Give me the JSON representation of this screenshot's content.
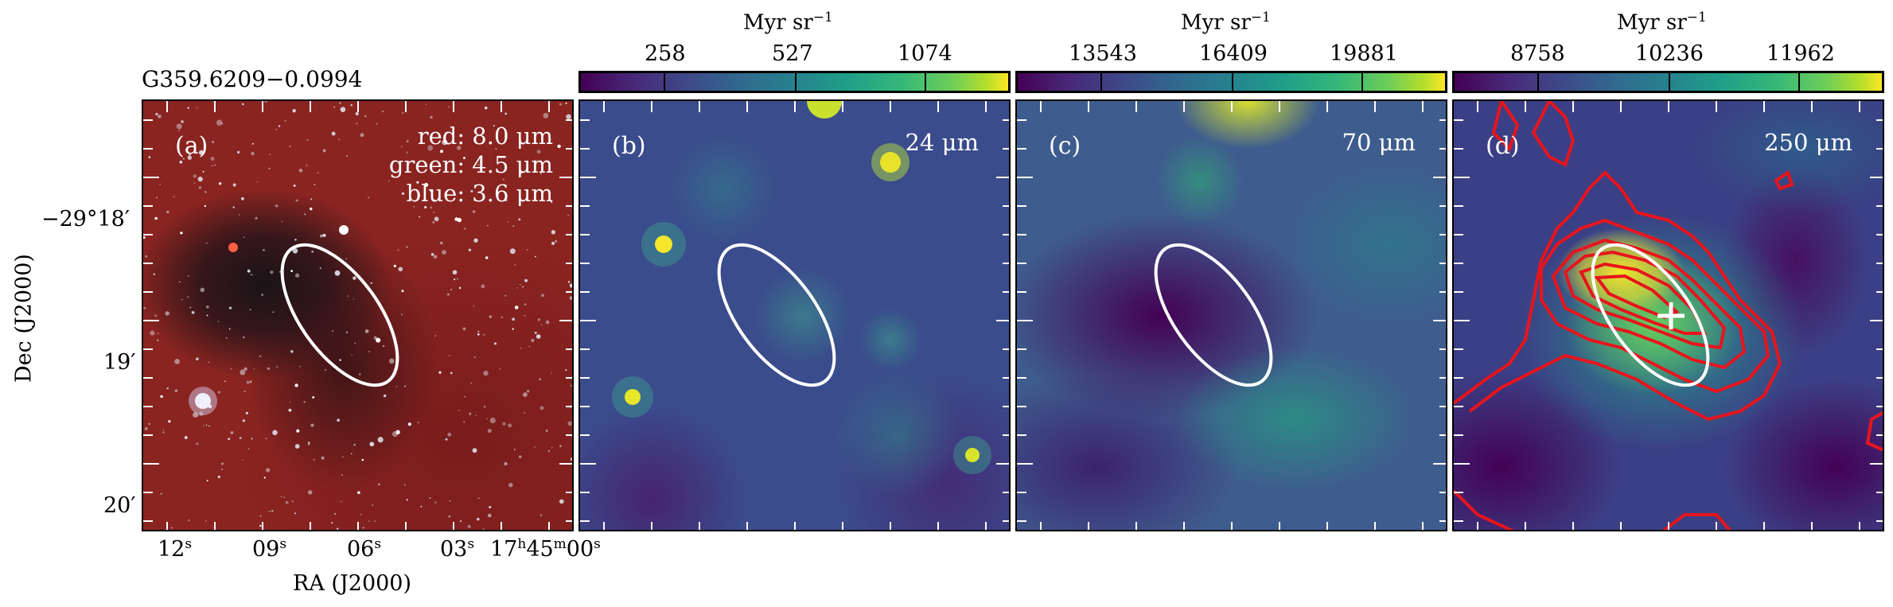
{
  "figure": {
    "source_name": "G359.6209−0.0994",
    "colorbar_unit": "Myr sr",
    "colorbar_unit_exp": "−1",
    "colorbars": [
      {
        "ticks": [
          "258",
          "527",
          "1074"
        ]
      },
      {
        "ticks": [
          "13543",
          "16409",
          "19881"
        ]
      },
      {
        "ticks": [
          "8758",
          "10236",
          "11962"
        ]
      }
    ],
    "panels": [
      {
        "label": "(a)",
        "legend": [
          "red: 8.0 μm",
          "green: 4.5 μm",
          "blue: 3.6 μm"
        ]
      },
      {
        "label": "(b)",
        "band": "24 μm"
      },
      {
        "label": "(c)",
        "band": "70 μm"
      },
      {
        "label": "(d)",
        "band": "250 μm"
      }
    ],
    "y_axis": {
      "title": "Dec (J2000)",
      "ticks": [
        "−29°18′",
        "19′",
        "20′"
      ]
    },
    "x_axis": {
      "title": "RA (J2000)",
      "ticks": [
        {
          "val": "12",
          "sup": "s"
        },
        {
          "val": "09",
          "sup": "s"
        },
        {
          "val": "06",
          "sup": "s"
        },
        {
          "val": "03",
          "sup": "s"
        },
        {
          "val": "17",
          "sup": "h",
          "val2": "45",
          "sup2": "m",
          "val3": "00",
          "sup3": "s"
        }
      ]
    },
    "colors": {
      "ellipse": "#ffffff",
      "contour": "#e8141c",
      "marker": "#ffffff"
    }
  }
}
